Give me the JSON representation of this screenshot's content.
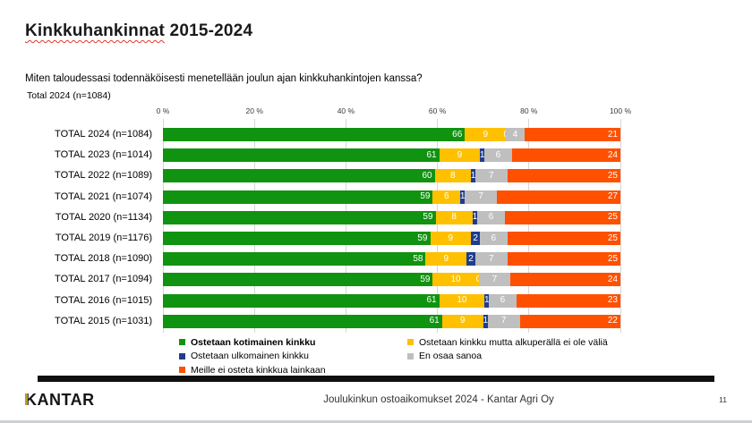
{
  "header": {
    "title_word": "Kinkkuhankinnat",
    "title_years": " 2015-2024",
    "question": "Miten taloudessasi todennäköisesti menetellään joulun ajan kinkkuhankintojen kanssa?",
    "subtitle": "Total 2024 (n=1084)"
  },
  "chart_data": {
    "type": "bar",
    "orientation": "horizontal",
    "stacked": true,
    "title": "Kinkkuhankinnat 2015-2024",
    "categories": [
      "TOTAL 2024 (n=1084)",
      "TOTAL 2023 (n=1014)",
      "TOTAL 2022 (n=1089)",
      "TOTAL 2021 (n=1074)",
      "TOTAL 2020 (n=1134)",
      "TOTAL 2019 (n=1176)",
      "TOTAL 2018 (n=1090)",
      "TOTAL 2017 (n=1094)",
      "TOTAL 2016 (n=1015)",
      "TOTAL 2015 (n=1031)"
    ],
    "series": [
      {
        "name": "Ostetaan kotimainen kinkku",
        "color": "#109310",
        "values": [
          66,
          61,
          60,
          59,
          59,
          59,
          58,
          59,
          61,
          61
        ]
      },
      {
        "name": "Ostetaan kinkku mutta alkuperällä ei ole väliä",
        "color": "#FFC000",
        "values": [
          9,
          9,
          8,
          6,
          8,
          9,
          9,
          10,
          10,
          9
        ]
      },
      {
        "name": "Ostetaan ulkomainen kinkku",
        "color": "#1F3D8F",
        "values": [
          0,
          1,
          1,
          1,
          1,
          2,
          2,
          0,
          1,
          1
        ]
      },
      {
        "name": "En osaa sanoa",
        "color": "#BFBFBF",
        "values": [
          4,
          6,
          7,
          7,
          6,
          6,
          7,
          7,
          6,
          7
        ]
      },
      {
        "name": "Meille ei osteta kinkkua lainkaan",
        "color": "#FF5000",
        "values": [
          21,
          24,
          25,
          27,
          25,
          25,
          25,
          24,
          23,
          22
        ]
      }
    ],
    "x_axis": {
      "ticks": [
        "0 %",
        "20 %",
        "40 %",
        "60 %",
        "80 %",
        "100 %"
      ],
      "range": [
        0,
        100
      ],
      "gridlines": true
    },
    "legend_position": "bottom"
  },
  "legend": {
    "columns": [
      {
        "items": [
          {
            "series": 0,
            "bold": true
          },
          {
            "series": 2,
            "bold": false
          },
          {
            "series": 4,
            "bold": false
          }
        ]
      },
      {
        "items": [
          {
            "series": 1,
            "bold": false
          },
          {
            "series": 3,
            "bold": false
          }
        ]
      }
    ]
  },
  "footer": {
    "brand": "KANTAR",
    "text": "Joulukinkun ostoaikomukset 2024 - Kantar Agri Oy",
    "page": "11"
  }
}
